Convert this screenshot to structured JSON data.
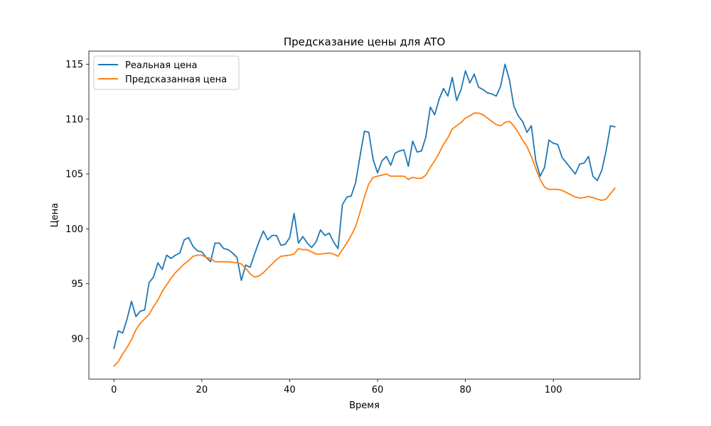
{
  "chart_data": {
    "type": "line",
    "title": "Предсказание цены для ATO",
    "xlabel": "Время",
    "ylabel": "Цена",
    "xlim": [
      -5.7,
      119.7
    ],
    "ylim": [
      86.3,
      116.2
    ],
    "xticks": [
      0,
      20,
      40,
      60,
      80,
      100
    ],
    "yticks": [
      90,
      95,
      100,
      105,
      110,
      115
    ],
    "grid": false,
    "legend_position": "top-left",
    "series": [
      {
        "name": "Реальная цена",
        "color": "#1f77b4",
        "values": [
          89.1,
          90.7,
          90.5,
          91.8,
          93.4,
          92.0,
          92.5,
          92.6,
          95.1,
          95.6,
          96.9,
          96.3,
          97.6,
          97.3,
          97.6,
          97.8,
          99.0,
          99.2,
          98.4,
          98.0,
          97.9,
          97.4,
          97.0,
          98.7,
          98.7,
          98.2,
          98.1,
          97.8,
          97.4,
          95.3,
          96.7,
          96.5,
          97.7,
          98.8,
          99.8,
          99.0,
          99.4,
          99.4,
          98.5,
          98.6,
          99.2,
          101.4,
          98.7,
          99.3,
          98.7,
          98.3,
          98.8,
          99.9,
          99.4,
          99.6,
          98.8,
          98.2,
          102.2,
          102.9,
          103.0,
          104.2,
          106.6,
          108.9,
          108.8,
          106.3,
          105.1,
          106.2,
          106.6,
          105.8,
          106.9,
          107.1,
          107.2,
          105.7,
          108.0,
          107.0,
          107.1,
          108.4,
          111.1,
          110.4,
          111.8,
          112.8,
          112.1,
          113.8,
          111.7,
          112.7,
          114.4,
          113.3,
          114.1,
          112.9,
          112.7,
          112.4,
          112.3,
          112.1,
          113.0,
          115.0,
          113.6,
          111.2,
          110.3,
          109.8,
          108.8,
          109.4,
          106.2,
          104.8,
          105.6,
          108.1,
          107.8,
          107.7,
          106.5,
          106.0,
          105.5,
          105.0,
          105.9,
          106.0,
          106.6,
          104.8,
          104.4,
          105.3,
          107.1,
          109.4,
          109.3
        ]
      },
      {
        "name": "Предсказанная цена",
        "color": "#ff7f0e",
        "values": [
          87.5,
          87.9,
          88.6,
          89.2,
          89.9,
          90.8,
          91.4,
          91.8,
          92.2,
          92.9,
          93.5,
          94.3,
          94.9,
          95.5,
          96.0,
          96.4,
          96.8,
          97.1,
          97.5,
          97.6,
          97.6,
          97.4,
          97.3,
          97.0,
          97.0,
          97.0,
          97.0,
          96.95,
          96.9,
          96.8,
          96.4,
          95.9,
          95.6,
          95.7,
          96.0,
          96.4,
          96.8,
          97.2,
          97.5,
          97.55,
          97.6,
          97.7,
          98.2,
          98.1,
          98.1,
          97.9,
          97.7,
          97.7,
          97.75,
          97.8,
          97.7,
          97.5,
          98.1,
          98.7,
          99.4,
          100.2,
          101.5,
          102.9,
          104.1,
          104.7,
          104.8,
          104.9,
          105.0,
          104.8,
          104.8,
          104.8,
          104.8,
          104.5,
          104.7,
          104.6,
          104.6,
          104.9,
          105.6,
          106.2,
          106.9,
          107.7,
          108.3,
          109.1,
          109.4,
          109.7,
          110.1,
          110.3,
          110.55,
          110.55,
          110.4,
          110.1,
          109.8,
          109.5,
          109.4,
          109.7,
          109.8,
          109.4,
          108.8,
          108.1,
          107.5,
          106.6,
          105.5,
          104.5,
          103.8,
          103.6,
          103.6,
          103.6,
          103.5,
          103.3,
          103.1,
          102.9,
          102.8,
          102.85,
          102.95,
          102.85,
          102.7,
          102.6,
          102.7,
          103.2,
          103.7
        ]
      }
    ]
  }
}
